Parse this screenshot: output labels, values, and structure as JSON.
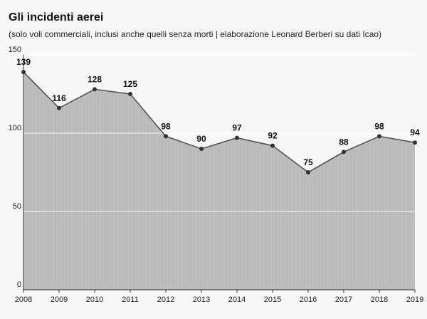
{
  "header": {
    "title": "Gli incidenti aerei",
    "subtitle": "(solo voli commerciali, inclusi anche quelli senza morti | elaborazione Leonard Berberi su dati Icao)"
  },
  "colors": {
    "area": "#bdbdbd",
    "line": "#555555",
    "marker": "#333333",
    "grid": "#ffffff",
    "background": "#f7f7f7"
  },
  "chart_data": {
    "type": "area",
    "title": "Gli incidenti aerei",
    "subtitle": "(solo voli commerciali, inclusi anche quelli senza morti | elaborazione Leonard Berberi su dati Icao)",
    "xlabel": "",
    "ylabel": "",
    "categories": [
      "2008",
      "2009",
      "2010",
      "2011",
      "2012",
      "2013",
      "2014",
      "2015",
      "2016",
      "2017",
      "2018",
      "2019"
    ],
    "values": [
      139,
      116,
      128,
      125,
      98,
      90,
      97,
      92,
      75,
      88,
      98,
      94
    ],
    "data_labels": [
      "139",
      "116",
      "128",
      "125",
      "98",
      "90",
      "97",
      "92",
      "75",
      "88",
      "98",
      "94"
    ],
    "ylim": [
      0,
      150
    ],
    "yticks": [
      0,
      50,
      100,
      150
    ],
    "ytick_labels": [
      "0",
      "50",
      "100",
      "150"
    ],
    "grid": true,
    "legend": "none"
  }
}
